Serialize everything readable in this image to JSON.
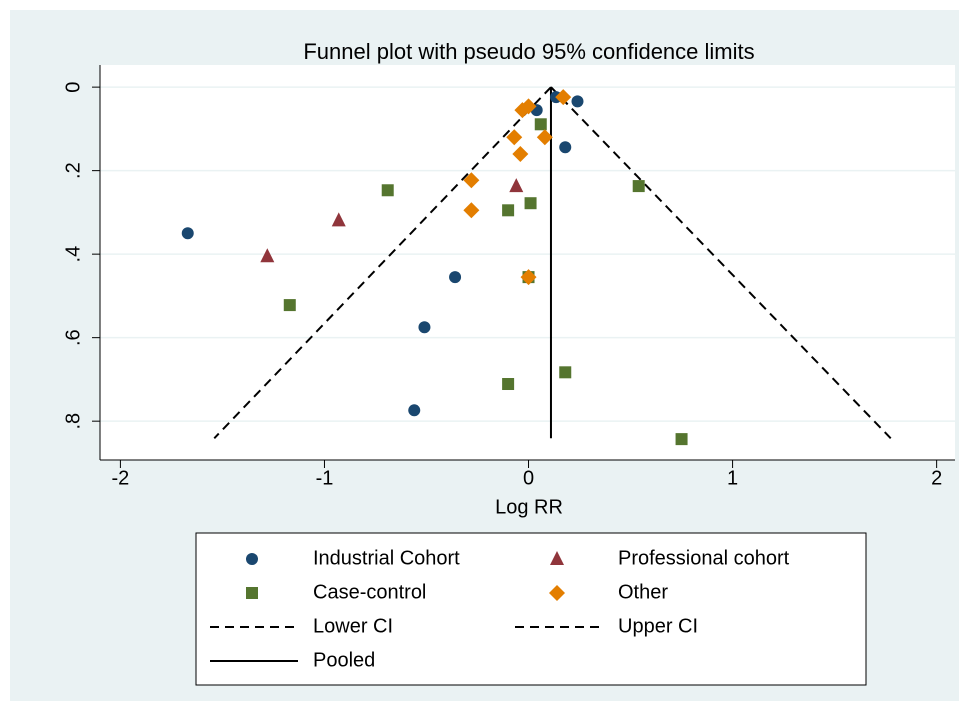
{
  "chart_data": {
    "type": "scatter",
    "title": "Funnel plot with pseudo 95% confidence limits",
    "x_label": "Log RR",
    "xlim": [
      -2.1,
      2.09
    ],
    "ylim": [
      0.893,
      -0.053
    ],
    "xticks": [
      -2,
      -1,
      0,
      1,
      2
    ],
    "yticks": [
      0,
      {
        "value": 0.2,
        "label": ".2"
      },
      {
        "value": 0.4,
        "label": ".4"
      },
      {
        "value": 0.6,
        "label": ".6"
      },
      {
        "value": 0.8,
        "label": ".8"
      }
    ],
    "grid": true,
    "series": [
      {
        "name": "Industrial Cohort",
        "color": "#1a476f",
        "marker": "circle",
        "x": [
          -1.67,
          0.135,
          0.04,
          0.24,
          0.18,
          -0.36,
          -0.51,
          -0.56,
          0.0
        ],
        "y": [
          0.35,
          0.024,
          0.055,
          0.034,
          0.144,
          0.455,
          0.575,
          0.774,
          0.455
        ]
      },
      {
        "name": "Professional cohort",
        "color": "#90353b",
        "marker": "triangle",
        "x": [
          -0.93,
          -1.28,
          -0.06
        ],
        "y": [
          0.319,
          0.405,
          0.237
        ]
      },
      {
        "name": "Case-control",
        "color": "#55752f",
        "marker": "square",
        "x": [
          -0.69,
          -1.17,
          0.06,
          0.54,
          0.01,
          -0.1,
          -0.1,
          0.18,
          0.75,
          0.0
        ],
        "y": [
          0.247,
          0.522,
          0.089,
          0.237,
          0.278,
          0.295,
          0.711,
          0.683,
          0.843,
          0.455
        ]
      },
      {
        "name": "Other",
        "color": "#e37e00",
        "marker": "diamond",
        "x": [
          0.17,
          -0.03,
          0.0,
          -0.07,
          0.08,
          -0.04,
          -0.28,
          -0.28,
          0.0
        ],
        "y": [
          0.024,
          0.055,
          0.046,
          0.12,
          0.12,
          0.16,
          0.223,
          0.295,
          0.455
        ]
      }
    ],
    "lines": [
      {
        "name": "Lower CI",
        "color": "#000000",
        "dash": "dashed",
        "x": [
          0.11,
          -1.54
        ],
        "y": [
          0,
          0.841
        ]
      },
      {
        "name": "Upper CI",
        "color": "#000000",
        "dash": "dashed",
        "x": [
          0.11,
          1.775
        ],
        "y": [
          0,
          0.841
        ]
      },
      {
        "name": "Pooled",
        "color": "#000000",
        "dash": "solid",
        "x": [
          0.11,
          0.11
        ],
        "y": [
          0,
          0.841
        ]
      }
    ]
  }
}
